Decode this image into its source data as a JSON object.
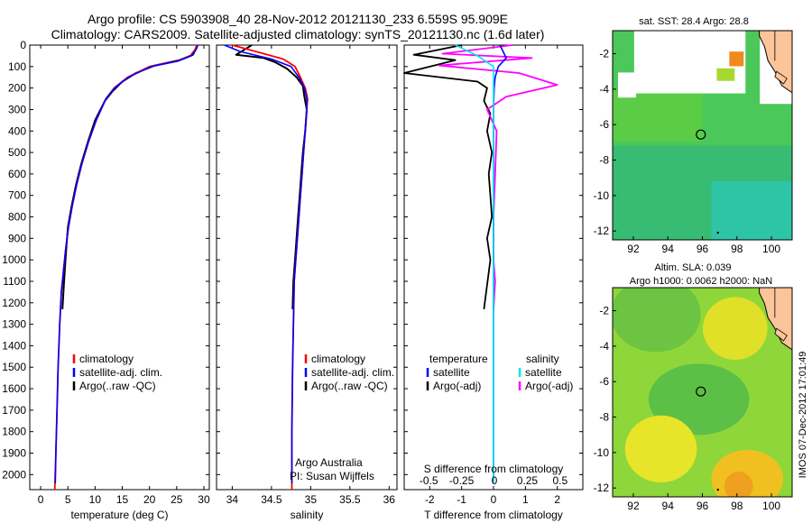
{
  "header": {
    "line1": "Argo profile: CS 5903908_40 28-Nov-2012 20121130_233 6.559S 95.909E",
    "line2": "Climatology: CARS2009. Satellite-adjusted climatology: synTS_20121130.nc (1.6d later)"
  },
  "colors": {
    "climatology": "#ff0000",
    "satellite": "#0000ff",
    "argo": "#000000",
    "sat_salinity": "#00e5ee",
    "argo_salinity": "#ff00ff"
  },
  "chart_data": [
    {
      "type": "line",
      "name": "temperature-profile",
      "xlabel": "temperature (deg C)",
      "ylabel": "",
      "xlim": [
        -2,
        31
      ],
      "ylim": [
        2070,
        0
      ],
      "xticks": [
        0,
        5,
        10,
        15,
        20,
        25,
        30
      ],
      "yticks": [
        0,
        100,
        200,
        300,
        400,
        500,
        600,
        700,
        800,
        900,
        1000,
        1100,
        1200,
        1300,
        1400,
        1500,
        1600,
        1700,
        1800,
        1900,
        2000
      ],
      "legend": [
        "climatology",
        "satellite-adj. clim.",
        "Argo(..raw -QC)"
      ],
      "series": [
        {
          "name": "climatology",
          "x": [
            28.7,
            28.4,
            27.5,
            25.0,
            20.0,
            16.0,
            13.5,
            12.0,
            10.2,
            8.8,
            7.6,
            6.6,
            5.8,
            5.1,
            4.6,
            4.2,
            3.8,
            3.5,
            3.2,
            3.0,
            2.8,
            2.6
          ],
          "y": [
            0,
            20,
            50,
            75,
            100,
            150,
            200,
            250,
            350,
            450,
            550,
            650,
            750,
            850,
            950,
            1050,
            1150,
            1300,
            1500,
            1700,
            1900,
            2070
          ]
        },
        {
          "name": "satellite",
          "x": [
            28.9,
            28.6,
            27.7,
            25.2,
            20.3,
            16.1,
            13.6,
            12.0,
            10.2,
            8.8,
            7.6,
            6.6,
            5.8,
            5.1,
            4.6,
            4.2,
            3.8,
            3.5,
            3.2,
            3.0,
            2.8,
            2.7
          ],
          "y": [
            0,
            20,
            50,
            75,
            100,
            150,
            200,
            250,
            350,
            450,
            550,
            650,
            750,
            850,
            950,
            1050,
            1150,
            1300,
            1500,
            1700,
            1900,
            2040
          ]
        },
        {
          "name": "argo",
          "x": [
            28.8,
            28.6,
            28.0,
            25.5,
            21.0,
            17.5,
            15.0,
            13.2,
            11.8,
            10.0,
            8.7,
            7.5,
            6.5,
            5.7,
            5.0,
            4.7,
            4.3,
            4.0
          ],
          "y": [
            0,
            15,
            45,
            70,
            95,
            130,
            170,
            215,
            260,
            350,
            450,
            550,
            650,
            750,
            850,
            950,
            1100,
            1230
          ]
        }
      ]
    },
    {
      "type": "line",
      "name": "salinity-profile",
      "xlabel": "salinity",
      "xlim": [
        33.8,
        36.1
      ],
      "ylim": [
        2070,
        0
      ],
      "xticks": [
        34,
        34.5,
        35,
        35.5,
        36
      ],
      "xticklabels": [
        "34",
        "34.5",
        "35",
        "35.5",
        "36"
      ],
      "legend": [
        "climatology",
        "satellite-adj. clim.",
        "Argo(..raw -QC)"
      ],
      "annotation": [
        "Argo Australia",
        "PI: Susan Wijffels"
      ],
      "series": [
        {
          "name": "climatology",
          "x": [
            34.0,
            34.3,
            34.65,
            34.8,
            34.87,
            34.93,
            34.96,
            34.95,
            34.93,
            34.91,
            34.89,
            34.87,
            34.85,
            34.83,
            34.81,
            34.79,
            34.78,
            34.77,
            34.76,
            34.76
          ],
          "y": [
            0,
            30,
            65,
            100,
            150,
            200,
            250,
            300,
            400,
            500,
            600,
            700,
            800,
            900,
            1000,
            1100,
            1300,
            1500,
            1800,
            2070
          ]
        },
        {
          "name": "satellite",
          "x": [
            33.9,
            34.1,
            34.5,
            34.75,
            34.85,
            34.92,
            34.95,
            34.95,
            34.93,
            34.91,
            34.89,
            34.87,
            34.85,
            34.83,
            34.81,
            34.79,
            34.78,
            34.77,
            34.76,
            34.76
          ],
          "y": [
            0,
            30,
            65,
            100,
            150,
            200,
            250,
            300,
            400,
            500,
            600,
            700,
            800,
            900,
            1000,
            1100,
            1300,
            1500,
            1800,
            2040
          ]
        },
        {
          "name": "argo",
          "x": [
            34.25,
            34.05,
            34.4,
            34.55,
            34.7,
            34.82,
            34.9,
            34.92,
            34.95,
            34.93,
            34.9,
            34.88,
            34.86,
            34.84,
            34.82,
            34.8,
            34.78,
            34.77
          ],
          "y": [
            0,
            45,
            60,
            80,
            110,
            150,
            190,
            240,
            300,
            400,
            500,
            600,
            700,
            800,
            900,
            1000,
            1100,
            1230
          ]
        }
      ]
    },
    {
      "type": "line",
      "name": "difference-profile",
      "xlabel": "T difference from climatology",
      "xlabel_top": "S difference from climatology",
      "xlim": [
        -2.8,
        2.8
      ],
      "ylim": [
        2070,
        0
      ],
      "xticks": [
        -2,
        -1,
        0,
        1,
        2
      ],
      "sticks": [
        -0.5,
        -0.25,
        0,
        0.25,
        0.5
      ],
      "sticklabels": [
        "-0.5",
        "-0.25",
        "0",
        "0.25",
        "0.5"
      ],
      "legend_temperature": "temperature",
      "legend_salinity": "salinity",
      "legend_labels": [
        "satellite",
        "Argo(-adj)"
      ],
      "series": [
        {
          "name": "T satellite",
          "x": [
            0.2,
            0.3,
            0.4,
            0.15,
            0.05,
            0.02,
            0.0,
            0.0,
            0.0,
            0.0,
            0.0
          ],
          "y": [
            0,
            30,
            60,
            100,
            150,
            200,
            300,
            500,
            800,
            1200,
            2040
          ]
        },
        {
          "name": "T argo",
          "x": [
            -1.0,
            -2.5,
            -1.2,
            -2.8,
            -0.5,
            -0.2,
            -0.3,
            -0.1,
            -0.2,
            -0.05,
            -0.15,
            -0.1,
            -0.05,
            -0.2,
            -0.1,
            -0.3
          ],
          "y": [
            0,
            45,
            70,
            130,
            170,
            200,
            260,
            320,
            400,
            500,
            600,
            700,
            800,
            900,
            1000,
            1230
          ]
        },
        {
          "name": "S satellite",
          "x": [
            -1.2,
            -0.5,
            0.0,
            0.0,
            0.0,
            0.0,
            0.0,
            0.0
          ],
          "y": [
            0,
            50,
            100,
            200,
            500,
            1000,
            1500,
            2040
          ]
        },
        {
          "name": "S argo",
          "x": [
            0.6,
            -1.6,
            1.2,
            -1.7,
            0.8,
            2.0,
            0.4,
            -0.2,
            0.1,
            0.05,
            0.0,
            0.0,
            0.05,
            0.0
          ],
          "y": [
            0,
            40,
            60,
            95,
            130,
            185,
            240,
            300,
            400,
            600,
            800,
            1000,
            1100,
            1230
          ]
        }
      ]
    },
    {
      "type": "heatmap",
      "name": "sst-map",
      "title": "sat. SST: 28.4  Argo: 28.8",
      "xlim": [
        90.8,
        101.2
      ],
      "ylim": [
        -12.5,
        -0.7
      ],
      "xticks": [
        92,
        94,
        96,
        98,
        100
      ],
      "yticks": [
        -2,
        -4,
        -6,
        -8,
        -10,
        -12
      ],
      "marker": {
        "lon": 95.909,
        "lat": -6.559
      }
    },
    {
      "type": "heatmap",
      "name": "sla-map",
      "title_line1": "Altim. SLA: 0.039",
      "title_line2": "Argo h1000: 0.0062  h2000: NaN",
      "xlim": [
        90.8,
        101.2
      ],
      "ylim": [
        -12.5,
        -0.7
      ],
      "xticks": [
        92,
        94,
        96,
        98,
        100
      ],
      "yticks": [
        -2,
        -4,
        -6,
        -8,
        -10,
        -12
      ],
      "marker": {
        "lon": 95.909,
        "lat": -6.559
      }
    }
  ],
  "watermark": "IMOS 07-Dec-2012 17:01:49"
}
